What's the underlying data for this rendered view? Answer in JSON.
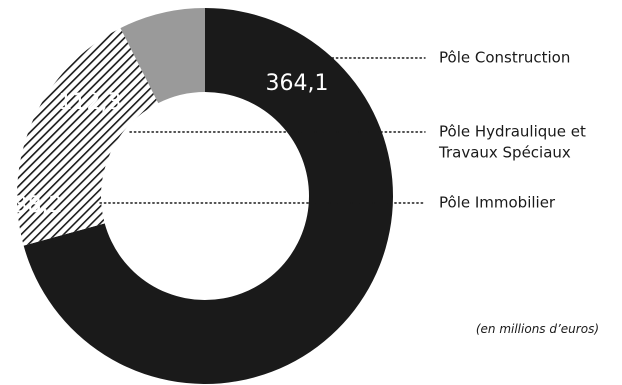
{
  "chart_data": {
    "type": "pie",
    "variant": "donut",
    "unit_note": "(en millions d’euros)",
    "slices": [
      {
        "label_lines": [
          "Pôle Construction"
        ],
        "value": 364.1,
        "value_label": "364,1",
        "fill": "#1a1a1a",
        "pattern": "solid"
      },
      {
        "label_lines": [
          "Pôle Hydraulique et",
          "Travaux Spéciaux"
        ],
        "value": 112.3,
        "value_label": "112,3",
        "fill": "#1a1a1a",
        "pattern": "diagonal-hatch"
      },
      {
        "label_lines": [
          "Pôle Immobilier"
        ],
        "value": 38.2,
        "value_label": "38,2",
        "fill": "#9a9a9a",
        "pattern": "solid"
      }
    ]
  }
}
